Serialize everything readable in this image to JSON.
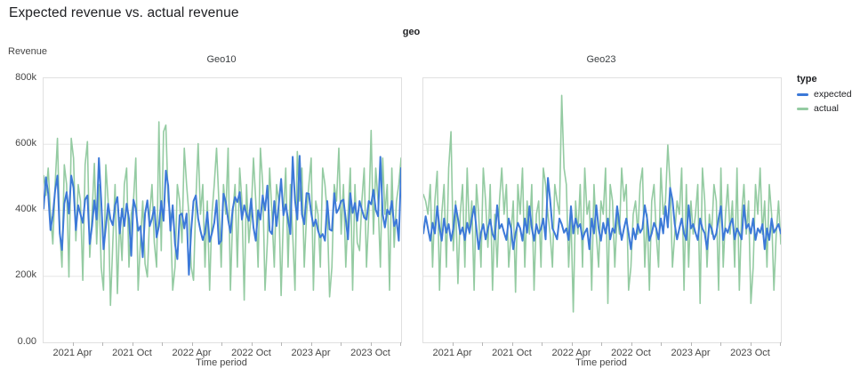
{
  "title": "Expected revenue vs. actual revenue",
  "facet_dimension_label": "geo",
  "y_axis_title": "Revenue",
  "x_axis_title": "Time period",
  "y_ticks": [
    "800k",
    "600k",
    "400k",
    "200k",
    "0.00"
  ],
  "x_tick_labels": [
    "2021 Apr",
    "2021 Oct",
    "2022 Apr",
    "2022 Oct",
    "2023 Apr",
    "2023 Oct"
  ],
  "legend": {
    "title": "type",
    "items": [
      {
        "label": "expected",
        "color": "#3c79d8"
      },
      {
        "label": "actual",
        "color": "#94cba2"
      }
    ]
  },
  "colors": {
    "expected": "#3c79d8",
    "actual": "#94cba2",
    "gridline": "#e5e5e5",
    "plot_border": "#e0e0e0",
    "text_primary": "#202124",
    "text_secondary": "#464646"
  },
  "chart_data": [
    {
      "type": "line",
      "facet": "Geo10",
      "x_range": {
        "start": "2021 Jan",
        "end": "2023 Dec",
        "cadence": "weekly"
      },
      "ylim_k": [
        0,
        800
      ],
      "y_grid_k": [
        200,
        400,
        600
      ],
      "unit": "thousands of revenue",
      "series": [
        {
          "name": "expected",
          "color": "#3c79d8",
          "values_k": [
            405,
            500,
            450,
            340,
            385,
            460,
            505,
            330,
            280,
            420,
            455,
            390,
            505,
            468,
            340,
            415,
            388,
            362,
            432,
            445,
            298,
            352,
            430,
            372,
            558,
            430,
            282,
            350,
            420,
            373,
            355,
            415,
            440,
            330,
            405,
            352,
            420,
            375,
            262,
            432,
            405,
            338,
            352,
            258,
            390,
            430,
            352,
            375,
            410,
            318,
            352,
            428,
            368,
            520,
            475,
            338,
            415,
            298,
            252,
            385,
            390,
            345,
            390,
            205,
            340,
            428,
            445,
            375,
            338,
            310,
            332,
            395,
            305,
            330,
            362,
            430,
            298,
            308,
            450,
            425,
            372,
            332,
            405,
            440,
            425,
            455,
            372,
            415,
            388,
            368,
            435,
            348,
            308,
            400,
            372,
            445,
            400,
            475,
            338,
            328,
            428,
            352,
            418,
            495,
            385,
            418,
            372,
            328,
            562,
            430,
            372,
            565,
            388,
            358,
            452,
            450,
            392,
            352,
            372,
            338,
            318,
            328,
            308,
            428,
            342,
            338,
            452,
            392,
            405,
            428,
            432,
            372,
            312,
            452,
            392,
            422,
            368,
            428,
            402,
            378,
            372,
            428,
            418,
            462,
            402,
            382,
            562,
            388,
            348,
            402,
            388,
            428,
            352,
            372,
            308,
            528
          ]
        },
        {
          "name": "actual",
          "color": "#94cba2",
          "values_k": [
            505,
            445,
            528,
            388,
            298,
            478,
            618,
            338,
            228,
            538,
            478,
            198,
            618,
            558,
            308,
            478,
            428,
            188,
            538,
            608,
            258,
            388,
            542,
            298,
            478,
            228,
            158,
            538,
            428,
            112,
            298,
            478,
            148,
            378,
            248,
            478,
            528,
            228,
            388,
            428,
            558,
            158,
            302,
            428,
            238,
            198,
            388,
            478,
            302,
            228,
            668,
            278,
            638,
            658,
            428,
            388,
            158,
            228,
            478,
            428,
            302,
            588,
            478,
            388,
            228,
            188,
            428,
            602,
            388,
            478,
            228,
            428,
            158,
            388,
            478,
            588,
            428,
            228,
            478,
            388,
            588,
            158,
            388,
            478,
            228,
            528,
            428,
            128,
            478,
            302,
            388,
            558,
            428,
            228,
            588,
            478,
            158,
            302,
            528,
            388,
            228,
            478,
            428,
            142,
            388,
            528,
            228,
            478,
            328,
            158,
            578,
            428,
            528,
            228,
            388,
            478,
            558,
            158,
            428,
            388,
            228,
            528,
            478,
            388,
            138,
            228,
            478,
            428,
            588,
            328,
            478,
            228,
            388,
            528,
            158,
            478,
            302,
            278,
            428,
            528,
            228,
            388,
            642,
            328,
            528,
            428,
            228,
            558,
            388,
            478,
            158,
            528,
            288,
            428,
            478,
            558
          ]
        }
      ]
    },
    {
      "type": "line",
      "facet": "Geo23",
      "x_range": {
        "start": "2021 Jan",
        "end": "2023 Dec",
        "cadence": "weekly"
      },
      "ylim_k": [
        0,
        800
      ],
      "y_grid_k": [
        200,
        400,
        600
      ],
      "unit": "thousands of revenue",
      "series": [
        {
          "name": "expected",
          "color": "#3c79d8",
          "values_k": [
            330,
            382,
            345,
            308,
            362,
            330,
            412,
            348,
            308,
            375,
            332,
            358,
            308,
            345,
            415,
            375,
            328,
            348,
            310,
            362,
            332,
            375,
            412,
            345,
            282,
            332,
            358,
            312,
            345,
            372,
            328,
            312,
            415,
            345,
            358,
            332,
            310,
            375,
            345,
            282,
            330,
            362,
            345,
            308,
            375,
            332,
            412,
            348,
            308,
            358,
            330,
            345,
            375,
            312,
            498,
            432,
            345,
            330,
            312,
            375,
            358,
            332,
            345,
            310,
            412,
            330,
            375,
            348,
            358,
            312,
            332,
            345,
            282,
            375,
            330,
            415,
            345,
            308,
            362,
            330,
            375,
            312,
            345,
            332,
            412,
            358,
            310,
            345,
            375,
            330,
            282,
            345,
            312,
            358,
            332,
            345,
            415,
            375,
            308,
            330,
            362,
            345,
            312,
            375,
            330,
            412,
            348,
            468,
            432,
            358,
            312,
            345,
            375,
            330,
            310,
            415,
            345,
            358,
            332,
            310,
            375,
            345,
            330,
            282,
            358,
            345,
            312,
            330,
            375,
            412,
            310,
            345,
            332,
            358,
            375,
            312,
            345,
            330,
            312,
            415,
            345,
            358,
            330,
            375,
            310,
            345,
            332,
            358,
            282,
            345,
            310,
            375,
            332,
            345,
            358,
            330
          ]
        },
        {
          "name": "actual",
          "color": "#94cba2",
          "values_k": [
            448,
            428,
            388,
            478,
            228,
            428,
            518,
            158,
            388,
            478,
            228,
            528,
            638,
            278,
            428,
            178,
            388,
            478,
            228,
            528,
            328,
            428,
            158,
            478,
            388,
            228,
            528,
            428,
            288,
            478,
            158,
            388,
            228,
            428,
            528,
            388,
            478,
            228,
            328,
            428,
            152,
            478,
            388,
            528,
            228,
            428,
            328,
            478,
            158,
            388,
            428,
            228,
            528,
            478,
            388,
            328,
            228,
            478,
            428,
            388,
            748,
            528,
            478,
            228,
            388,
            92,
            428,
            328,
            478,
            228,
            528,
            388,
            428,
            158,
            478,
            328,
            228,
            428,
            388,
            528,
            118,
            478,
            428,
            228,
            388,
            328,
            528,
            428,
            478,
            158,
            228,
            388,
            428,
            328,
            478,
            528,
            228,
            388,
            158,
            428,
            478,
            328,
            228,
            528,
            388,
            428,
            598,
            478,
            228,
            328,
            428,
            388,
            528,
            158,
            478,
            228,
            428,
            328,
            388,
            478,
            118,
            528,
            428,
            228,
            388,
            328,
            478,
            428,
            158,
            528,
            228,
            388,
            478,
            328,
            428,
            228,
            528,
            158,
            388,
            478,
            328,
            428,
            118,
            228,
            478,
            388,
            528,
            328,
            428,
            228,
            478,
            388,
            158,
            328,
            428,
            298
          ]
        }
      ]
    }
  ]
}
